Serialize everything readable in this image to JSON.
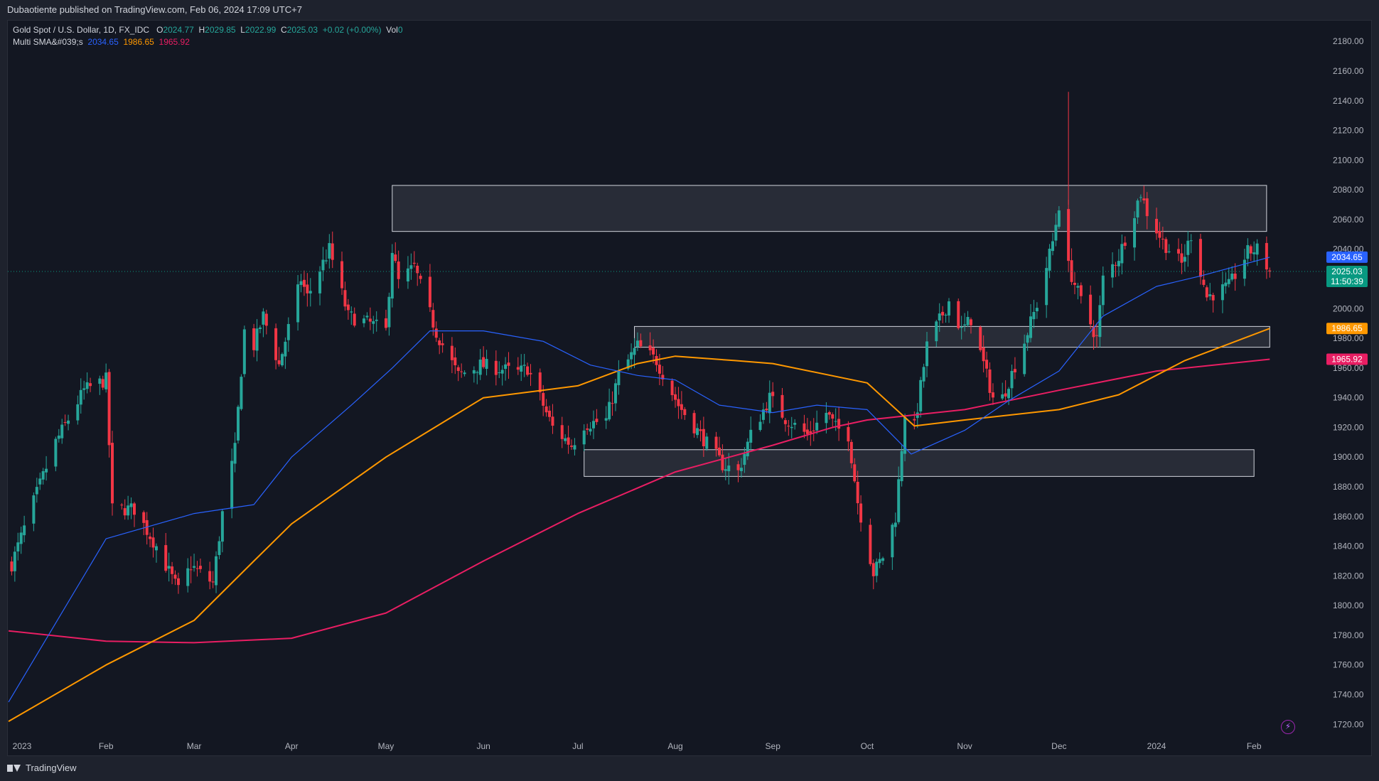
{
  "header": {
    "published": "Dubaotiente published on TradingView.com, Feb 06, 2024 17:09 UTC+7"
  },
  "legend": {
    "symbol": "Gold Spot / U.S. Dollar, 1D, FX_IDC",
    "o_label": "O",
    "o": "2024.77",
    "h_label": "H",
    "h": "2029.85",
    "l_label": "L",
    "l": "2022.99",
    "c_label": "C",
    "c": "2025.03",
    "change": "+0.02 (+0.00%)",
    "vol_label": "Vol",
    "vol": "0",
    "indicator": "Multi SMA&#039;s",
    "sma1": "2034.65",
    "sma2": "1986.65",
    "sma3": "1965.92"
  },
  "footer": {
    "brand": "TradingView"
  },
  "colors": {
    "bg": "#131722",
    "up": "#26a69a",
    "down": "#f23645",
    "sma_fast": "#2962ff",
    "sma_mid": "#ff9800",
    "sma_slow": "#e91e63",
    "grid_text": "#b2b5be"
  },
  "icons": [
    "tradingview-logo-icon",
    "lightning-icon"
  ],
  "chart_data": {
    "type": "candlestick",
    "title": "Gold Spot / U.S. Dollar, 1D, FX_IDC",
    "ylim": [
      1712,
      2194
    ],
    "y_ticks": [
      1720,
      1740,
      1760,
      1780,
      1800,
      1820,
      1840,
      1860,
      1880,
      1900,
      1920,
      1940,
      1960,
      1980,
      2000,
      2020,
      2040,
      2060,
      2080,
      2100,
      2120,
      2140,
      2160,
      2180
    ],
    "y_tick_labels": [
      "1720.00",
      "1740.00",
      "1760.00",
      "1780.00",
      "1800.00",
      "1820.00",
      "1840.00",
      "1860.00",
      "1880.00",
      "1900.00",
      "1920.00",
      "1940.00",
      "1960.00",
      "1980.00",
      "2000.00",
      "2020.00",
      "2040.00",
      "2060.00",
      "2080.00",
      "2100.00",
      "2120.00",
      "2140.00",
      "2160.00",
      "2180.00"
    ],
    "x_ticks": [
      {
        "label": "2023",
        "date": "2023-01-01"
      },
      {
        "label": "Feb",
        "date": "2023-02-01"
      },
      {
        "label": "Mar",
        "date": "2023-03-01"
      },
      {
        "label": "Apr",
        "date": "2023-04-01"
      },
      {
        "label": "May",
        "date": "2023-05-01"
      },
      {
        "label": "Jun",
        "date": "2023-06-01"
      },
      {
        "label": "Jul",
        "date": "2023-07-01"
      },
      {
        "label": "Aug",
        "date": "2023-08-01"
      },
      {
        "label": "Sep",
        "date": "2023-09-01"
      },
      {
        "label": "Oct",
        "date": "2023-10-01"
      },
      {
        "label": "Nov",
        "date": "2023-11-01"
      },
      {
        "label": "Dec",
        "date": "2023-12-01"
      },
      {
        "label": "2024",
        "date": "2024-01-01"
      },
      {
        "label": "Feb",
        "date": "2024-02-01"
      }
    ],
    "price_path": [
      [
        "2023-01-02",
        1828
      ],
      [
        "2023-01-09",
        1870
      ],
      [
        "2023-01-16",
        1910
      ],
      [
        "2023-01-25",
        1945
      ],
      [
        "2023-02-01",
        1952
      ],
      [
        "2023-02-03",
        1865
      ],
      [
        "2023-02-10",
        1865
      ],
      [
        "2023-02-17",
        1840
      ],
      [
        "2023-02-24",
        1810
      ],
      [
        "2023-02-28",
        1827
      ],
      [
        "2023-03-07",
        1815
      ],
      [
        "2023-03-10",
        1862
      ],
      [
        "2023-03-14",
        1905
      ],
      [
        "2023-03-17",
        1985
      ],
      [
        "2023-03-20",
        1975
      ],
      [
        "2023-03-23",
        1995
      ],
      [
        "2023-03-28",
        1962
      ],
      [
        "2023-04-04",
        2020
      ],
      [
        "2023-04-06",
        2008
      ],
      [
        "2023-04-13",
        2040
      ],
      [
        "2023-04-19",
        1995
      ],
      [
        "2023-04-26",
        1990
      ],
      [
        "2023-05-01",
        1985
      ],
      [
        "2023-05-03",
        2040
      ],
      [
        "2023-05-05",
        2018
      ],
      [
        "2023-05-10",
        2028
      ],
      [
        "2023-05-17",
        1984
      ],
      [
        "2023-05-24",
        1955
      ],
      [
        "2023-05-31",
        1962
      ],
      [
        "2023-06-05",
        1960
      ],
      [
        "2023-06-12",
        1957
      ],
      [
        "2023-06-15",
        1960
      ],
      [
        "2023-06-23",
        1920
      ],
      [
        "2023-06-29",
        1908
      ],
      [
        "2023-07-03",
        1922
      ],
      [
        "2023-07-10",
        1925
      ],
      [
        "2023-07-14",
        1955
      ],
      [
        "2023-07-20",
        1975
      ],
      [
        "2023-07-26",
        1965
      ],
      [
        "2023-08-02",
        1935
      ],
      [
        "2023-08-09",
        1915
      ],
      [
        "2023-08-16",
        1895
      ],
      [
        "2023-08-21",
        1890
      ],
      [
        "2023-08-25",
        1915
      ],
      [
        "2023-08-31",
        1940
      ],
      [
        "2023-09-05",
        1926
      ],
      [
        "2023-09-12",
        1915
      ],
      [
        "2023-09-18",
        1930
      ],
      [
        "2023-09-21",
        1920
      ],
      [
        "2023-09-25",
        1915
      ],
      [
        "2023-09-28",
        1870
      ],
      [
        "2023-10-03",
        1822
      ],
      [
        "2023-10-06",
        1833
      ],
      [
        "2023-10-10",
        1860
      ],
      [
        "2023-10-13",
        1930
      ],
      [
        "2023-10-16",
        1920
      ],
      [
        "2023-10-20",
        1975
      ],
      [
        "2023-10-27",
        2005
      ],
      [
        "2023-10-31",
        1985
      ],
      [
        "2023-11-03",
        1993
      ],
      [
        "2023-11-10",
        1940
      ],
      [
        "2023-11-13",
        1940
      ],
      [
        "2023-11-20",
        1978
      ],
      [
        "2023-11-24",
        2003
      ],
      [
        "2023-11-29",
        2045
      ],
      [
        "2023-12-01",
        2070
      ],
      [
        "2023-12-04",
        2028
      ],
      [
        "2023-12-08",
        2005
      ],
      [
        "2023-12-13",
        1980
      ],
      [
        "2023-12-15",
        2020
      ],
      [
        "2023-12-20",
        2035
      ],
      [
        "2023-12-27",
        2078
      ],
      [
        "2023-12-29",
        2065
      ],
      [
        "2024-01-03",
        2045
      ],
      [
        "2024-01-09",
        2030
      ],
      [
        "2024-01-12",
        2050
      ],
      [
        "2024-01-17",
        2008
      ],
      [
        "2024-01-24",
        2015
      ],
      [
        "2024-01-30",
        2038
      ],
      [
        "2024-02-02",
        2040
      ],
      [
        "2024-02-06",
        2025.03
      ]
    ],
    "sma_fast_path": [
      [
        "2023-01-01",
        1735
      ],
      [
        "2023-02-01",
        1845
      ],
      [
        "2023-03-01",
        1862
      ],
      [
        "2023-03-20",
        1868
      ],
      [
        "2023-04-01",
        1900
      ],
      [
        "2023-04-20",
        1935
      ],
      [
        "2023-05-03",
        1960
      ],
      [
        "2023-05-15",
        1985
      ],
      [
        "2023-06-01",
        1985
      ],
      [
        "2023-06-20",
        1978
      ],
      [
        "2023-07-05",
        1962
      ],
      [
        "2023-07-20",
        1955
      ],
      [
        "2023-08-01",
        1952
      ],
      [
        "2023-08-15",
        1935
      ],
      [
        "2023-09-01",
        1930
      ],
      [
        "2023-09-15",
        1935
      ],
      [
        "2023-10-01",
        1932
      ],
      [
        "2023-10-15",
        1902
      ],
      [
        "2023-11-01",
        1918
      ],
      [
        "2023-11-15",
        1938
      ],
      [
        "2023-12-01",
        1958
      ],
      [
        "2023-12-15",
        1995
      ],
      [
        "2024-01-01",
        2015
      ],
      [
        "2024-01-15",
        2022
      ],
      [
        "2024-02-06",
        2034.65
      ]
    ],
    "sma_mid_path": [
      [
        "2023-01-01",
        1722
      ],
      [
        "2023-02-01",
        1760
      ],
      [
        "2023-03-01",
        1790
      ],
      [
        "2023-03-20",
        1830
      ],
      [
        "2023-04-01",
        1855
      ],
      [
        "2023-05-01",
        1900
      ],
      [
        "2023-06-01",
        1940
      ],
      [
        "2023-07-01",
        1948
      ],
      [
        "2023-07-20",
        1963
      ],
      [
        "2023-08-01",
        1968
      ],
      [
        "2023-08-20",
        1965
      ],
      [
        "2023-09-01",
        1963
      ],
      [
        "2023-10-01",
        1950
      ],
      [
        "2023-10-16",
        1921
      ],
      [
        "2023-11-01",
        1925
      ],
      [
        "2023-12-01",
        1932
      ],
      [
        "2023-12-20",
        1942
      ],
      [
        "2024-01-10",
        1965
      ],
      [
        "2024-02-06",
        1986.65
      ]
    ],
    "sma_slow_path": [
      [
        "2023-01-01",
        1783
      ],
      [
        "2023-02-01",
        1776
      ],
      [
        "2023-03-01",
        1775
      ],
      [
        "2023-04-01",
        1778
      ],
      [
        "2023-05-01",
        1795
      ],
      [
        "2023-06-01",
        1830
      ],
      [
        "2023-07-01",
        1862
      ],
      [
        "2023-08-01",
        1890
      ],
      [
        "2023-09-01",
        1908
      ],
      [
        "2023-09-20",
        1920
      ],
      [
        "2023-10-01",
        1925
      ],
      [
        "2023-11-01",
        1932
      ],
      [
        "2023-12-01",
        1945
      ],
      [
        "2024-01-01",
        1958
      ],
      [
        "2024-02-06",
        1965.92
      ]
    ],
    "zones": [
      {
        "from": "2023-05-03",
        "to": "2024-02-05",
        "low": 2052,
        "high": 2083
      },
      {
        "from": "2023-07-19",
        "to": "2024-02-06",
        "low": 1974,
        "high": 1988
      },
      {
        "from": "2023-07-03",
        "to": "2024-02-01",
        "low": 1887,
        "high": 1905
      }
    ],
    "last_price": 2025.03,
    "price_labels": [
      {
        "value": 2034.65,
        "text": "2034.65",
        "color": "#2962ff"
      },
      {
        "value": 2025.03,
        "text": "2025.03",
        "sub": "11:50:39",
        "color": "#089981"
      },
      {
        "value": 1986.65,
        "text": "1986.65",
        "color": "#ff9800"
      },
      {
        "value": 1965.92,
        "text": "1965.92",
        "color": "#e91e63"
      }
    ]
  }
}
